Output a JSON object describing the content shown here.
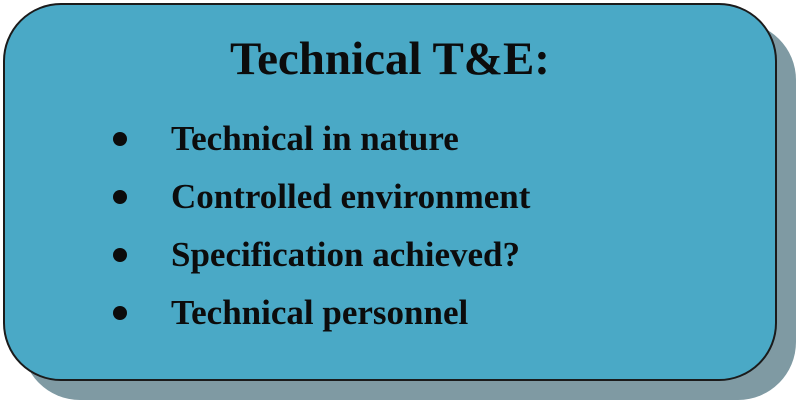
{
  "box": {
    "title": "Technical T&E:",
    "items": [
      "Technical in nature",
      "Controlled environment",
      "Specification achieved?",
      "Technical personnel"
    ]
  },
  "colors": {
    "box_fill": "#4aa9c6",
    "box_border": "#1b1b1b",
    "shadow": "#7f9aa3",
    "text": "#0c0c0c"
  }
}
